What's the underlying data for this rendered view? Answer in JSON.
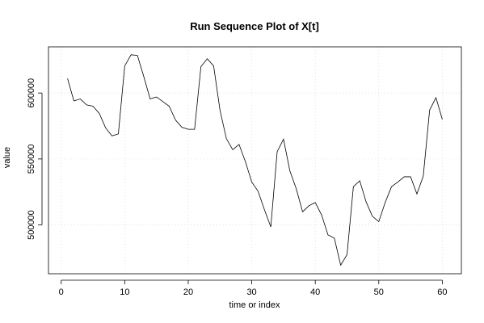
{
  "chart_data": {
    "type": "line",
    "title": "Run Sequence Plot of X[t]",
    "xlabel": "time or index",
    "ylabel": "value",
    "x_ticks": [
      0,
      10,
      20,
      30,
      40,
      50,
      60
    ],
    "y_ticks": [
      500000,
      550000,
      600000
    ],
    "xlim": [
      -2,
      63
    ],
    "ylim": [
      463000,
      635000
    ],
    "grid": true,
    "series": [
      {
        "x": [
          1,
          2,
          3,
          4,
          5,
          6,
          7,
          8,
          9,
          10,
          11,
          12,
          13,
          14,
          15,
          16,
          17,
          18,
          19,
          20,
          21,
          22,
          23,
          24,
          25,
          26,
          27,
          28,
          29,
          30,
          31,
          32,
          33,
          34,
          35,
          36,
          37,
          38,
          39,
          40,
          41,
          42,
          43,
          44,
          45,
          46,
          47,
          48,
          49,
          50,
          51,
          52,
          53,
          54,
          55,
          56,
          57,
          58,
          59,
          60
        ],
        "values": [
          611000,
          594000,
          595500,
          591000,
          590000,
          584500,
          573500,
          567500,
          569000,
          620500,
          629000,
          628500,
          612500,
          595500,
          597000,
          593500,
          590000,
          579500,
          574000,
          572500,
          572500,
          620000,
          626000,
          620500,
          587000,
          565500,
          557000,
          561000,
          548000,
          532500,
          525500,
          511500,
          498500,
          555500,
          565000,
          541000,
          527500,
          510000,
          514500,
          517000,
          507500,
          492500,
          490000,
          469500,
          477500,
          529000,
          533500,
          517500,
          506500,
          502500,
          517000,
          529000,
          532500,
          536500,
          536500,
          523500,
          537000,
          587000,
          596500,
          580000
        ]
      }
    ]
  }
}
